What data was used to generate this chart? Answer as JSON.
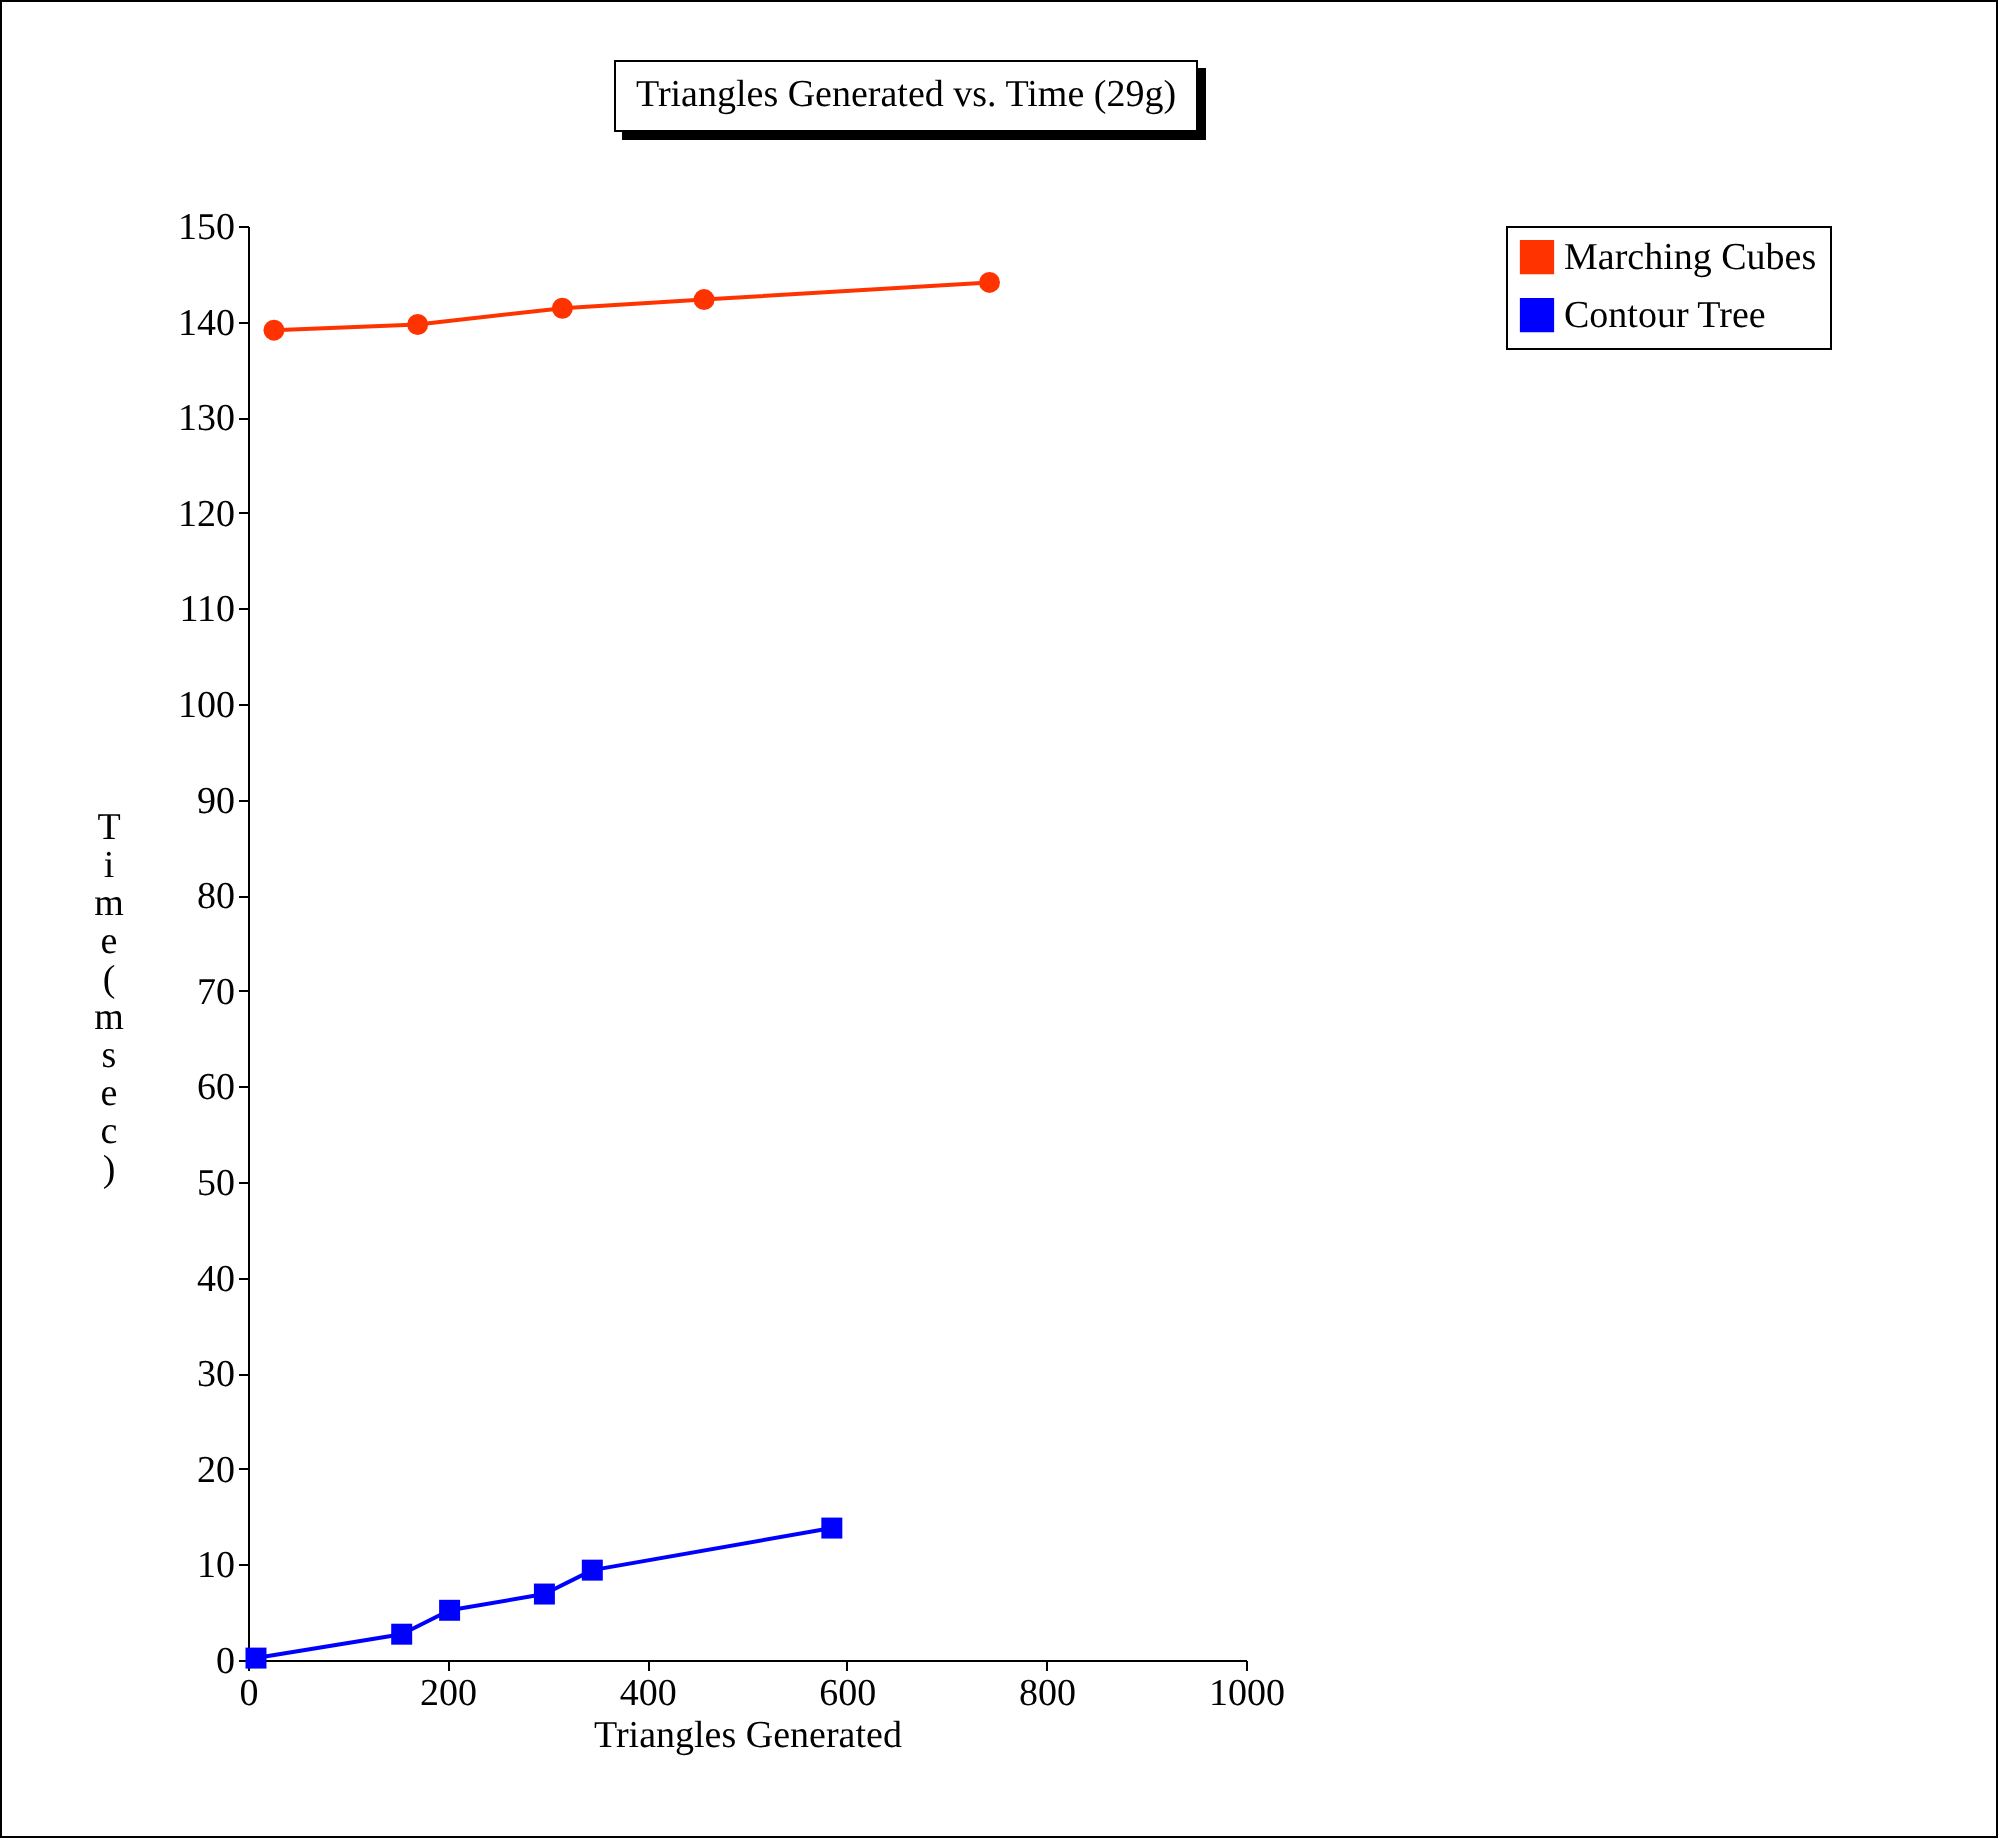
{
  "chart_data": {
    "type": "line",
    "title": "Triangles Generated vs. Time (29g)",
    "xlabel": "Triangles Generated",
    "ylabel": "Time (msec)",
    "xlim": [
      0,
      1000
    ],
    "xticks": [
      0,
      200,
      400,
      600,
      800,
      1000
    ],
    "ylim": [
      0,
      150
    ],
    "yticks": [
      0,
      10,
      20,
      30,
      40,
      50,
      60,
      70,
      80,
      90,
      100,
      110,
      120,
      130,
      140,
      150
    ],
    "grid": false,
    "legend": "top right",
    "line_style": "solid",
    "series": [
      {
        "name": "Marching Cubes",
        "color": "#ff3300",
        "marker": "circle",
        "x": [
          26,
          170,
          315,
          457,
          743
        ],
        "values": [
          139.1,
          139.7,
          141.4,
          142.3,
          144.1
        ]
      },
      {
        "name": "Contour Tree",
        "color": "#0000ff",
        "marker": "square",
        "x": [
          8,
          154,
          202,
          297,
          345,
          585
        ],
        "values": [
          0.2,
          2.7,
          5.2,
          6.9,
          9.4,
          13.8
        ]
      }
    ]
  }
}
